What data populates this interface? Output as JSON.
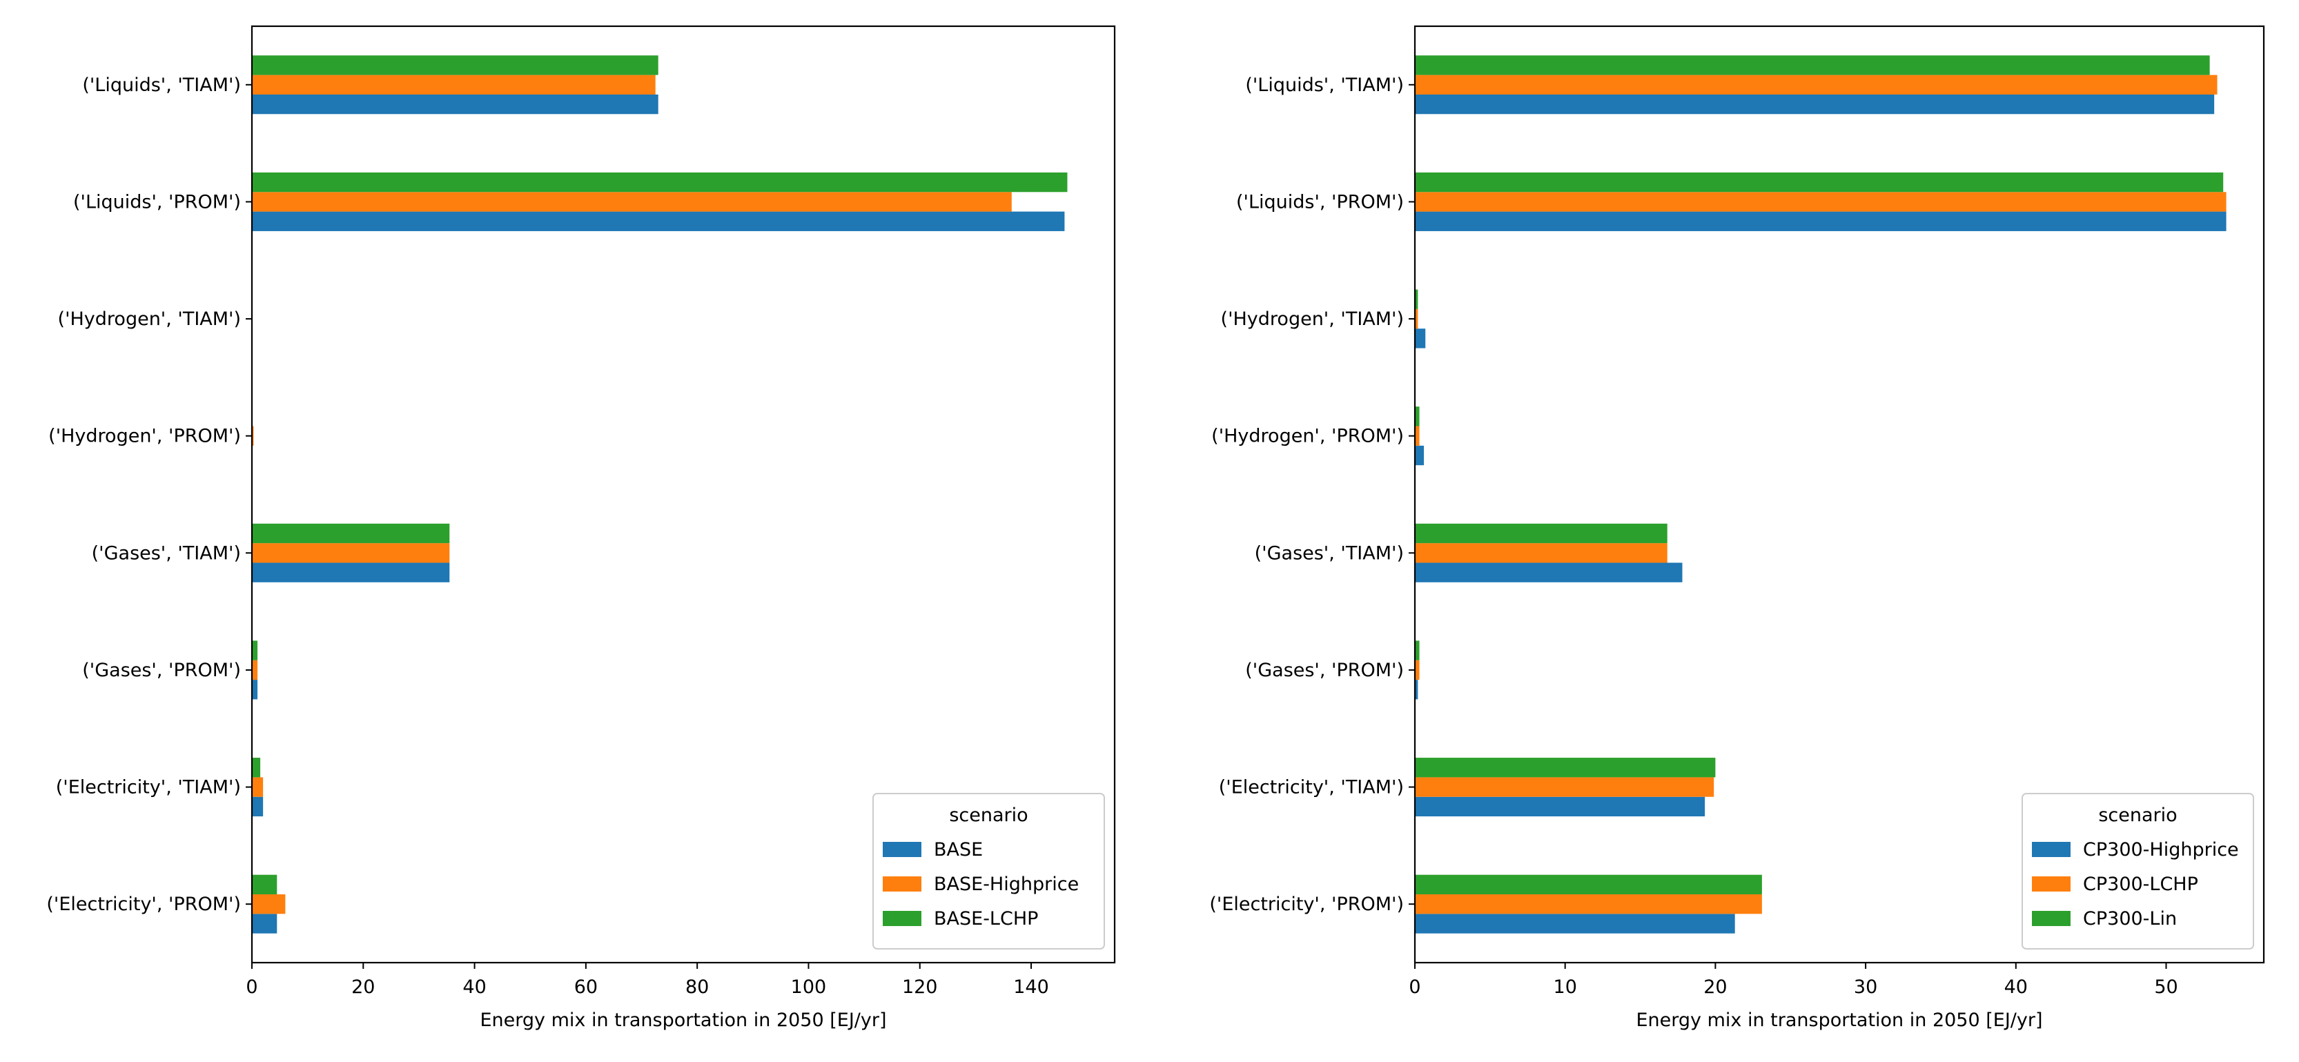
{
  "chart_data": [
    {
      "type": "bar",
      "orientation": "horizontal",
      "xlabel": "Energy mix in transportation in 2050 [EJ/yr]",
      "ylabel": "",
      "xlim": [
        0,
        155
      ],
      "xticks": [
        0,
        20,
        40,
        60,
        80,
        100,
        120,
        140
      ],
      "categories": [
        "('Liquids', 'TIAM')",
        "('Liquids', 'PROM')",
        "('Hydrogen', 'TIAM')",
        "('Hydrogen', 'PROM')",
        "('Gases', 'TIAM')",
        "('Gases', 'PROM')",
        "('Electricity', 'TIAM')",
        "('Electricity', 'PROM')"
      ],
      "legend_title": "scenario",
      "legend_position": "lower-right",
      "series": [
        {
          "name": "BASE",
          "color": "#1f77b4",
          "values": [
            73,
            146,
            0,
            0,
            35.5,
            1,
            2,
            4.5
          ]
        },
        {
          "name": "BASE-Highprice",
          "color": "#ff7f0e",
          "values": [
            72.5,
            136.5,
            0,
            0.3,
            35.5,
            1,
            2,
            6
          ]
        },
        {
          "name": "BASE-LCHP",
          "color": "#2ca02c",
          "values": [
            73,
            146.5,
            0,
            0,
            35.5,
            1,
            1.5,
            4.5
          ]
        }
      ]
    },
    {
      "type": "bar",
      "orientation": "horizontal",
      "xlabel": "Energy mix in transportation in 2050 [EJ/yr]",
      "ylabel": "",
      "xlim": [
        0,
        56.5
      ],
      "xticks": [
        0,
        10,
        20,
        30,
        40,
        50
      ],
      "categories": [
        "('Liquids', 'TIAM')",
        "('Liquids', 'PROM')",
        "('Hydrogen', 'TIAM')",
        "('Hydrogen', 'PROM')",
        "('Gases', 'TIAM')",
        "('Gases', 'PROM')",
        "('Electricity', 'TIAM')",
        "('Electricity', 'PROM')"
      ],
      "legend_title": "scenario",
      "legend_position": "lower-right",
      "series": [
        {
          "name": "CP300-Highprice",
          "color": "#1f77b4",
          "values": [
            53.2,
            54,
            0.7,
            0.6,
            17.8,
            0.2,
            19.3,
            21.3
          ]
        },
        {
          "name": "CP300-LCHP",
          "color": "#ff7f0e",
          "values": [
            53.4,
            54,
            0.2,
            0.3,
            16.8,
            0.3,
            19.9,
            23.1
          ]
        },
        {
          "name": "CP300-Lin",
          "color": "#2ca02c",
          "values": [
            52.9,
            53.8,
            0.2,
            0.3,
            16.8,
            0.3,
            20,
            23.1
          ]
        }
      ]
    }
  ]
}
